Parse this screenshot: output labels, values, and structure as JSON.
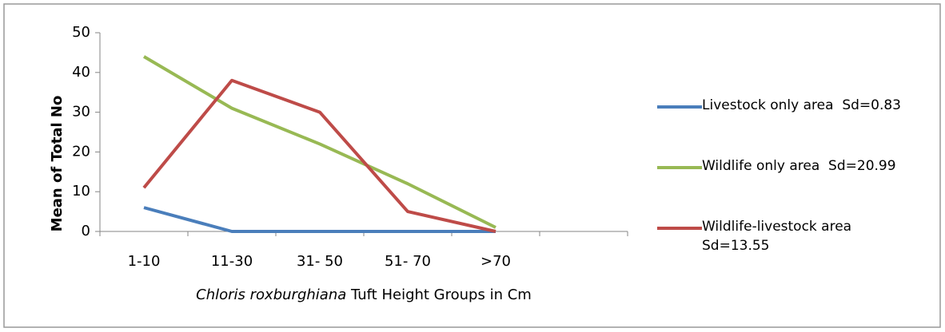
{
  "chart_data": {
    "type": "line",
    "ylabel": "Mean of Total No",
    "xlabel_italic": "Chloris roxburghiana",
    "xlabel": " Tuft Height Groups in Cm",
    "categories": [
      "1-10",
      "11-30",
      "31- 50",
      "51- 70",
      ">70",
      null
    ],
    "series": [
      {
        "name": "Livestock only area  Sd=0.83",
        "color": "#4a7ebb",
        "values": [
          6,
          0,
          0,
          0,
          0,
          null
        ]
      },
      {
        "name": "Wildlife only area  Sd=20.99",
        "color": "#98b954",
        "values": [
          44,
          31,
          22,
          12,
          1,
          null
        ]
      },
      {
        "name": "Wildlife-livestock area Sd=13.55",
        "color": "#be4b48",
        "values": [
          11,
          38,
          30,
          5,
          0,
          null
        ]
      }
    ],
    "ylim": [
      0,
      50
    ],
    "yticks": [
      0,
      10,
      20,
      30,
      40,
      50
    ],
    "grid": false,
    "legend": "right"
  }
}
